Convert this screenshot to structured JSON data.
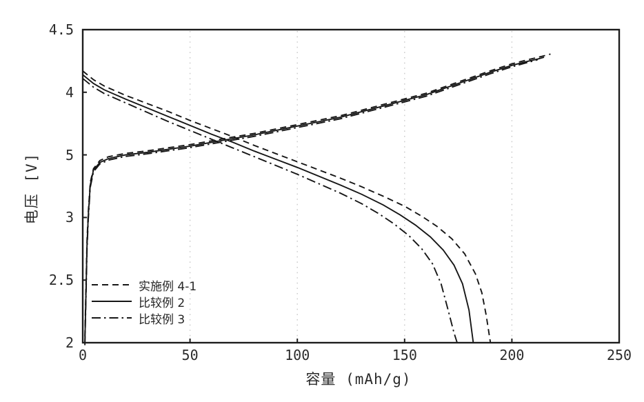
{
  "figure": {
    "background": "#ffffff",
    "line_color": "#161616",
    "frame_color": "#1c1c1c",
    "grid_color": "#c9c9c9",
    "text_color": "#2b2b2b"
  },
  "chart_data": {
    "type": "line",
    "title": "",
    "xlabel": "容量 (mAh/g)",
    "ylabel": "电压 [V]",
    "xlim": [
      0,
      250
    ],
    "ylim": [
      2,
      4.5
    ],
    "grid": {
      "vertical_at": [
        50,
        100,
        150,
        200
      ],
      "style": "dotted",
      "horizontal": false
    },
    "x_ticks": [
      {
        "value": 0,
        "label": "0"
      },
      {
        "value": 50,
        "label": "50"
      },
      {
        "value": 100,
        "label": "100"
      },
      {
        "value": 150,
        "label": "150"
      },
      {
        "value": 200,
        "label": "200"
      },
      {
        "value": 250,
        "label": "250"
      }
    ],
    "y_ticks": [
      {
        "value": 4.5,
        "label": "4.5"
      },
      {
        "value": 4,
        "label": "4"
      },
      {
        "value": 3.5,
        "label": "5"
      },
      {
        "value": 3,
        "label": "3"
      },
      {
        "value": 2.5,
        "label": "2.5"
      },
      {
        "value": 2,
        "label": "2"
      }
    ],
    "legend": {
      "position": "inside-bottom-left",
      "entries": [
        {
          "label": "实施例 4-1",
          "style": "dashed"
        },
        {
          "label": "比较例 2",
          "style": "solid"
        },
        {
          "label": "比较例 3",
          "style": "dashdot"
        }
      ]
    },
    "series": [
      {
        "id": "example-4-1-charge",
        "legend_label": "实施例 4-1",
        "branch": "charge",
        "style": "dashed",
        "points": [
          [
            1,
            2.05
          ],
          [
            1.5,
            2.45
          ],
          [
            2,
            2.82
          ],
          [
            2.6,
            3.05
          ],
          [
            3.5,
            3.28
          ],
          [
            5,
            3.39
          ],
          [
            8,
            3.455
          ],
          [
            12,
            3.485
          ],
          [
            20,
            3.512
          ],
          [
            30,
            3.532
          ],
          [
            40,
            3.557
          ],
          [
            50,
            3.582
          ],
          [
            60,
            3.612
          ],
          [
            70,
            3.642
          ],
          [
            80,
            3.672
          ],
          [
            90,
            3.707
          ],
          [
            100,
            3.742
          ],
          [
            110,
            3.777
          ],
          [
            120,
            3.812
          ],
          [
            130,
            3.857
          ],
          [
            140,
            3.902
          ],
          [
            150,
            3.947
          ],
          [
            160,
            3.992
          ],
          [
            170,
            4.052
          ],
          [
            180,
            4.112
          ],
          [
            190,
            4.172
          ],
          [
            200,
            4.227
          ],
          [
            208,
            4.262
          ],
          [
            214,
            4.287
          ],
          [
            218,
            4.305
          ]
        ]
      },
      {
        "id": "comparative-2-charge",
        "legend_label": "比较例 2",
        "branch": "charge",
        "style": "solid",
        "points": [
          [
            1,
            2.0
          ],
          [
            1.5,
            2.4
          ],
          [
            2,
            2.78
          ],
          [
            2.6,
            3.02
          ],
          [
            3.5,
            3.26
          ],
          [
            5,
            3.38
          ],
          [
            8,
            3.44
          ],
          [
            12,
            3.47
          ],
          [
            20,
            3.5
          ],
          [
            30,
            3.52
          ],
          [
            40,
            3.545
          ],
          [
            50,
            3.57
          ],
          [
            60,
            3.6
          ],
          [
            70,
            3.63
          ],
          [
            80,
            3.66
          ],
          [
            90,
            3.695
          ],
          [
            100,
            3.73
          ],
          [
            110,
            3.765
          ],
          [
            120,
            3.8
          ],
          [
            130,
            3.845
          ],
          [
            140,
            3.89
          ],
          [
            150,
            3.935
          ],
          [
            160,
            3.98
          ],
          [
            170,
            4.04
          ],
          [
            180,
            4.1
          ],
          [
            190,
            4.16
          ],
          [
            200,
            4.215
          ],
          [
            208,
            4.25
          ],
          [
            212,
            4.265
          ],
          [
            215,
            4.28
          ]
        ]
      },
      {
        "id": "comparative-3-charge",
        "legend_label": "比较例 3",
        "branch": "charge",
        "style": "dashdot",
        "points": [
          [
            1,
            1.98
          ],
          [
            1.5,
            2.36
          ],
          [
            2,
            2.74
          ],
          [
            2.6,
            2.99
          ],
          [
            3.5,
            3.24
          ],
          [
            5,
            3.365
          ],
          [
            8,
            3.428
          ],
          [
            12,
            3.458
          ],
          [
            20,
            3.488
          ],
          [
            30,
            3.508
          ],
          [
            40,
            3.533
          ],
          [
            50,
            3.558
          ],
          [
            60,
            3.588
          ],
          [
            70,
            3.618
          ],
          [
            80,
            3.648
          ],
          [
            90,
            3.683
          ],
          [
            100,
            3.718
          ],
          [
            110,
            3.753
          ],
          [
            120,
            3.788
          ],
          [
            130,
            3.833
          ],
          [
            140,
            3.878
          ],
          [
            150,
            3.923
          ],
          [
            160,
            3.968
          ],
          [
            170,
            4.028
          ],
          [
            180,
            4.088
          ],
          [
            190,
            4.148
          ],
          [
            200,
            4.203
          ],
          [
            206,
            4.232
          ],
          [
            210,
            4.25
          ],
          [
            212,
            4.26
          ]
        ]
      },
      {
        "id": "example-4-1-discharge",
        "legend_label": "实施例 4-1",
        "branch": "discharge",
        "style": "dashed",
        "points": [
          [
            0,
            4.17
          ],
          [
            5,
            4.1
          ],
          [
            10,
            4.05
          ],
          [
            20,
            3.975
          ],
          [
            30,
            3.91
          ],
          [
            40,
            3.845
          ],
          [
            50,
            3.775
          ],
          [
            60,
            3.71
          ],
          [
            70,
            3.645
          ],
          [
            80,
            3.575
          ],
          [
            90,
            3.51
          ],
          [
            100,
            3.445
          ],
          [
            110,
            3.38
          ],
          [
            120,
            3.315
          ],
          [
            130,
            3.245
          ],
          [
            140,
            3.17
          ],
          [
            150,
            3.09
          ],
          [
            158,
            3.01
          ],
          [
            165,
            2.93
          ],
          [
            172,
            2.83
          ],
          [
            178,
            2.71
          ],
          [
            183,
            2.55
          ],
          [
            186,
            2.4
          ],
          [
            188,
            2.22
          ],
          [
            190,
            2.0
          ]
        ]
      },
      {
        "id": "comparative-2-discharge",
        "legend_label": "比较例 2",
        "branch": "discharge",
        "style": "solid",
        "points": [
          [
            0,
            4.14
          ],
          [
            5,
            4.07
          ],
          [
            10,
            4.02
          ],
          [
            20,
            3.945
          ],
          [
            30,
            3.875
          ],
          [
            40,
            3.805
          ],
          [
            50,
            3.735
          ],
          [
            60,
            3.665
          ],
          [
            70,
            3.6
          ],
          [
            80,
            3.53
          ],
          [
            90,
            3.465
          ],
          [
            100,
            3.4
          ],
          [
            110,
            3.33
          ],
          [
            120,
            3.26
          ],
          [
            130,
            3.185
          ],
          [
            140,
            3.1
          ],
          [
            148,
            3.02
          ],
          [
            155,
            2.94
          ],
          [
            162,
            2.845
          ],
          [
            168,
            2.74
          ],
          [
            173,
            2.62
          ],
          [
            177,
            2.47
          ],
          [
            180,
            2.26
          ],
          [
            182,
            2.0
          ]
        ]
      },
      {
        "id": "comparative-3-discharge",
        "legend_label": "比较例 3",
        "branch": "discharge",
        "style": "dashdot",
        "points": [
          [
            0,
            4.11
          ],
          [
            5,
            4.04
          ],
          [
            10,
            3.99
          ],
          [
            20,
            3.915
          ],
          [
            30,
            3.84
          ],
          [
            40,
            3.765
          ],
          [
            50,
            3.695
          ],
          [
            60,
            3.625
          ],
          [
            70,
            3.555
          ],
          [
            80,
            3.485
          ],
          [
            90,
            3.415
          ],
          [
            100,
            3.345
          ],
          [
            110,
            3.27
          ],
          [
            120,
            3.195
          ],
          [
            130,
            3.11
          ],
          [
            138,
            3.03
          ],
          [
            145,
            2.95
          ],
          [
            152,
            2.855
          ],
          [
            158,
            2.75
          ],
          [
            163,
            2.63
          ],
          [
            167,
            2.47
          ],
          [
            170,
            2.28
          ],
          [
            173,
            2.08
          ],
          [
            174.5,
            2.0
          ]
        ]
      }
    ]
  }
}
